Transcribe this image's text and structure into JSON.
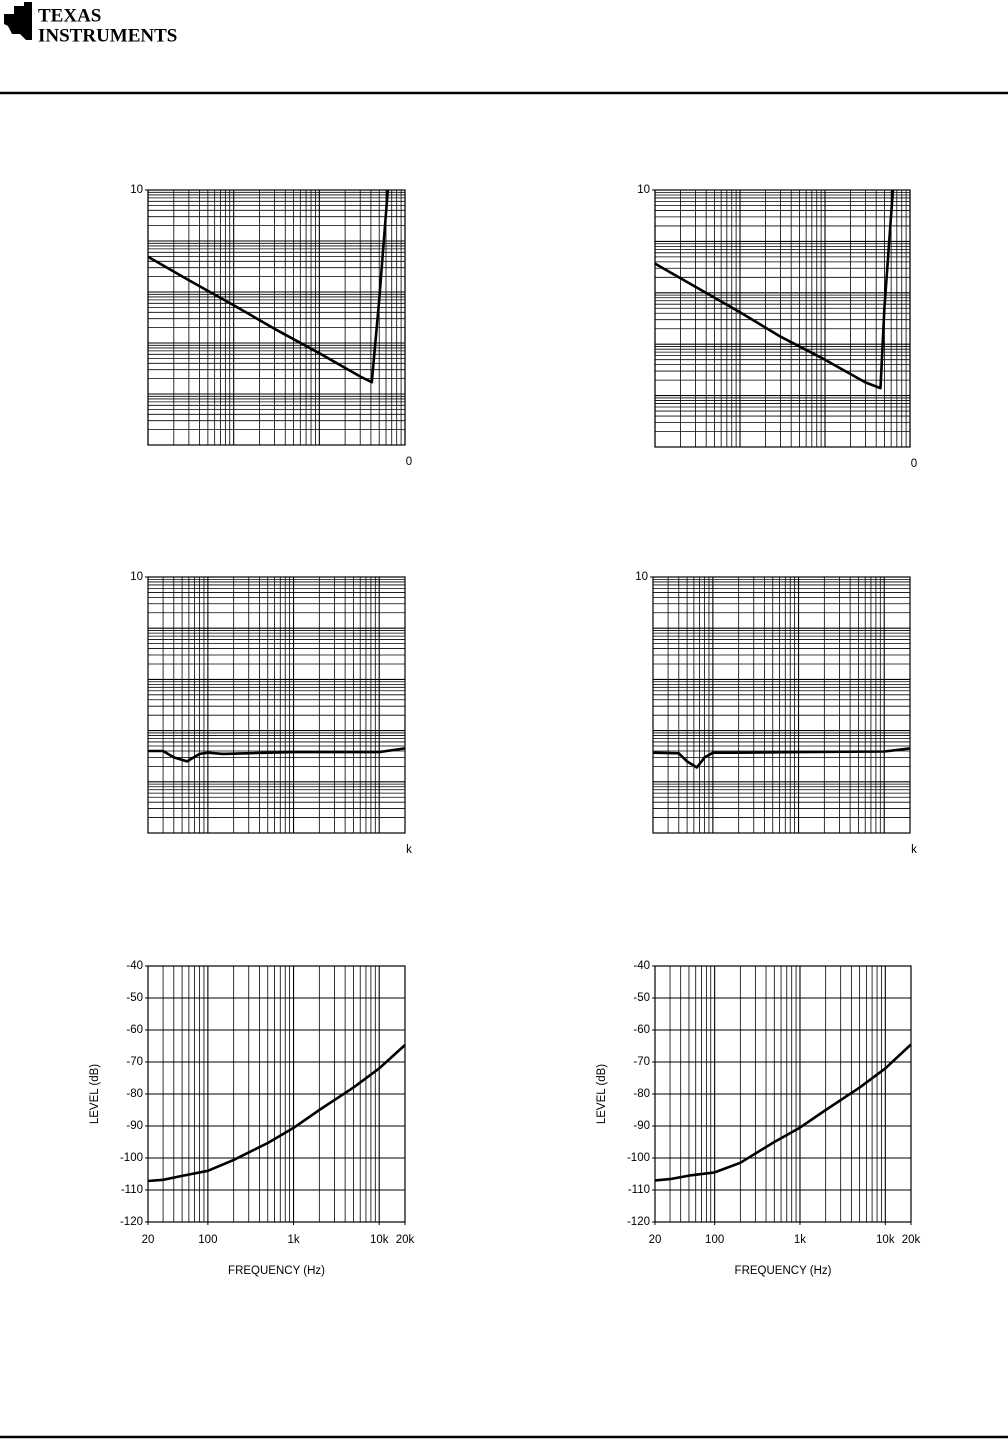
{
  "header": {
    "brand_line1": "TEXAS",
    "brand_line2": "INSTRUMENTS"
  },
  "chart_data": [
    {
      "type": "line",
      "xlog": true,
      "ylog": true,
      "grid": true,
      "color": "#000000",
      "xlim": [
        0.01,
        10
      ],
      "ylim": [
        0.0001,
        10
      ],
      "yticks": [
        10
      ],
      "x_end_label": "0",
      "x": [
        0.01,
        0.03,
        0.1,
        0.3,
        1,
        3,
        4.1,
        5,
        6.3
      ],
      "values": [
        0.49,
        0.17,
        0.055,
        0.019,
        0.0063,
        0.0022,
        0.0017,
        0.07,
        10
      ]
    },
    {
      "type": "line",
      "xlog": true,
      "ylog": true,
      "grid": true,
      "color": "#000000",
      "xlim": [
        0.01,
        10
      ],
      "ylim": [
        0.0001,
        10
      ],
      "yticks": [
        10
      ],
      "x_end_label": "0",
      "x": [
        0.01,
        0.03,
        0.1,
        0.3,
        1,
        3,
        4.5,
        5,
        6.3
      ],
      "values": [
        0.37,
        0.13,
        0.042,
        0.014,
        0.005,
        0.0018,
        0.0014,
        0.05,
        10
      ]
    },
    {
      "type": "line",
      "xlog": true,
      "ylog": true,
      "grid": true,
      "color": "#000000",
      "xlim": [
        20,
        20000
      ],
      "ylim": [
        0.0001,
        10
      ],
      "yticks": [
        10
      ],
      "x_end_label": "k",
      "x": [
        20,
        30,
        40,
        57,
        80,
        100,
        150,
        1000,
        10000,
        20000
      ],
      "values": [
        0.004,
        0.004,
        0.003,
        0.0025,
        0.0035,
        0.0037,
        0.0035,
        0.0038,
        0.0038,
        0.0045
      ]
    },
    {
      "type": "line",
      "xlog": true,
      "ylog": true,
      "grid": true,
      "color": "#000000",
      "xlim": [
        20,
        20000
      ],
      "ylim": [
        0.0001,
        10
      ],
      "yticks": [
        10
      ],
      "x_end_label": "k",
      "x": [
        20,
        40,
        50,
        65,
        80,
        100,
        200,
        1000,
        10000,
        20000
      ],
      "values": [
        0.0037,
        0.0036,
        0.0025,
        0.0019,
        0.003,
        0.0037,
        0.0037,
        0.0038,
        0.0039,
        0.0045
      ]
    },
    {
      "type": "line",
      "xlog": true,
      "ylog": false,
      "grid": true,
      "color": "#000000",
      "xlabel": "FREQUENCY (Hz)",
      "ylabel": "LEVEL (dB)",
      "xlim": [
        20,
        20000
      ],
      "ylim": [
        -120,
        -40
      ],
      "yticks": [
        -40,
        -50,
        -60,
        -70,
        -80,
        -90,
        -100,
        -110,
        -120
      ],
      "xticks": [
        20,
        100,
        {
          "value": 1000,
          "label": "1k"
        },
        {
          "value": 10000,
          "label": "10k"
        },
        {
          "value": 20000,
          "label": "20k"
        }
      ],
      "x": [
        20,
        30,
        50,
        100,
        200,
        500,
        1000,
        2000,
        5000,
        10000,
        20000
      ],
      "values": [
        -107.2,
        -106.8,
        -105.6,
        -104,
        -100.6,
        -95.3,
        -90.6,
        -85,
        -78,
        -72,
        -64.7
      ]
    },
    {
      "type": "line",
      "xlog": true,
      "ylog": false,
      "grid": true,
      "color": "#000000",
      "xlabel": "FREQUENCY (Hz)",
      "ylabel": "LEVEL (dB)",
      "xlim": [
        20,
        20000
      ],
      "ylim": [
        -120,
        -40
      ],
      "yticks": [
        -40,
        -50,
        -60,
        -70,
        -80,
        -90,
        -100,
        -110,
        -120
      ],
      "xticks": [
        20,
        100,
        {
          "value": 1000,
          "label": "1k"
        },
        {
          "value": 10000,
          "label": "10k"
        },
        {
          "value": 20000,
          "label": "20k"
        }
      ],
      "x": [
        20,
        30,
        50,
        100,
        200,
        500,
        1000,
        2000,
        5000,
        10000,
        20000
      ],
      "values": [
        -107,
        -106.6,
        -105.5,
        -104.5,
        -101.5,
        -95,
        -90.5,
        -85,
        -78,
        -72,
        -64.5
      ]
    }
  ]
}
